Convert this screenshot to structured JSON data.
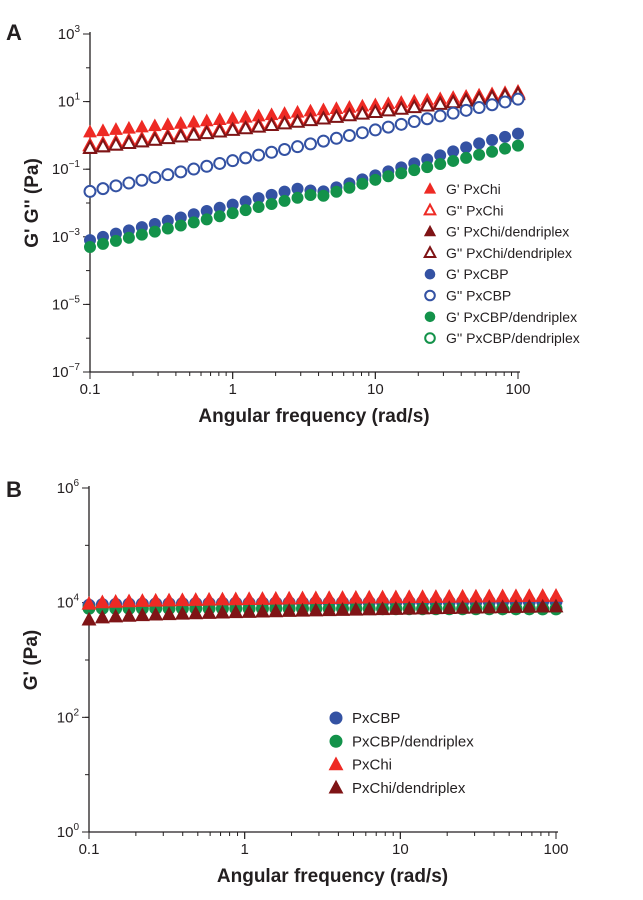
{
  "colors": {
    "red": "#ee2a24",
    "darkred": "#7f1416",
    "blue": "#3452a3",
    "green": "#13924a",
    "axis": "#231f20"
  },
  "chart_data": [
    {
      "panel": "A",
      "type": "scatter",
      "xlabel": "Angular frequency (rad/s)",
      "ylabel": "G' G'' (Pa)",
      "xscale": "log",
      "yscale": "log",
      "xlim": [
        0.1,
        100
      ],
      "ylim": [
        1e-07,
        1000
      ],
      "x_ticks": [
        "0.1",
        "1",
        "10",
        "100"
      ],
      "y_ticks": [
        {
          "value": 1e-07,
          "base": "10",
          "exp": "−7"
        },
        {
          "value": 1e-05,
          "base": "10",
          "exp": "−5"
        },
        {
          "value": 0.001,
          "base": "10",
          "exp": "−3"
        },
        {
          "value": 0.1,
          "base": "10",
          "exp": "−1"
        },
        {
          "value": 10,
          "base": "10",
          "exp": "1"
        },
        {
          "value": 1000,
          "base": "10",
          "exp": "3"
        }
      ],
      "legend_position": "lower-right",
      "series": [
        {
          "name": "G' PxChi",
          "marker": "triangle",
          "filled": true,
          "color": "#ee2a24",
          "fn": "power",
          "y0": 1.25,
          "slope": 0.4
        },
        {
          "name": "G'' PxChi",
          "marker": "triangle",
          "filled": false,
          "color": "#ee2a24",
          "fn": "power",
          "y0": 0.5,
          "slope": 0.52
        },
        {
          "name": "G' PxChi/dendriplex",
          "marker": "triangle",
          "filled": true,
          "color": "#7f1416",
          "fn": "power",
          "y0": 0.4,
          "slope": 0.55
        },
        {
          "name": "G'' PxChi/dendriplex",
          "marker": "triangle",
          "filled": false,
          "color": "#7f1416",
          "fn": "power",
          "y0": 0.42,
          "slope": 0.53
        },
        {
          "name": "G' PxCBP",
          "marker": "circle",
          "filled": true,
          "color": "#3452a3",
          "fn": "hump",
          "y0": 0.0008,
          "slope": 1.05,
          "offset": 0
        },
        {
          "name": "G'' PxCBP",
          "marker": "circle",
          "filled": false,
          "color": "#3452a3",
          "fn": "power",
          "y0": 0.022,
          "slope": 0.91
        },
        {
          "name": "G' PxCBP/dendriplex",
          "marker": "circle",
          "filled": true,
          "color": "#13924a",
          "fn": "hump",
          "y0": 0.0005,
          "slope": 1.1,
          "offset": -0.1
        },
        {
          "name": "G'' PxCBP/dendriplex",
          "marker": "circle",
          "filled": false,
          "color": "#13924a",
          "fn": "none"
        }
      ]
    },
    {
      "panel": "B",
      "type": "scatter",
      "xlabel": "Angular frequency (rad/s)",
      "ylabel": "G' (Pa)",
      "xscale": "log",
      "yscale": "log",
      "xlim": [
        0.1,
        100
      ],
      "ylim": [
        1,
        1000000
      ],
      "x_ticks": [
        "0.1",
        "1",
        "10",
        "100"
      ],
      "y_ticks": [
        {
          "value": 1,
          "base": "10",
          "exp": "0"
        },
        {
          "value": 100,
          "base": "10",
          "exp": "2"
        },
        {
          "value": 10000,
          "base": "10",
          "exp": "4"
        },
        {
          "value": 1000000,
          "base": "10",
          "exp": "6"
        }
      ],
      "legend_position": "lower-right",
      "series": [
        {
          "name": "PxCBP",
          "marker": "circle",
          "filled": true,
          "color": "#3452a3",
          "fn": "plateau",
          "y0": 9000,
          "y1": 10500
        },
        {
          "name": "PxCBP/dendriplex",
          "marker": "circle",
          "filled": true,
          "color": "#13924a",
          "fn": "plateau",
          "y0": 8000,
          "y1": 7800
        },
        {
          "name": "PxChi",
          "marker": "triangle",
          "filled": true,
          "color": "#ee2a24",
          "fn": "plateau",
          "y0": 9500,
          "y1": 13000
        },
        {
          "name": "PxChi/dendriplex",
          "marker": "triangle",
          "filled": true,
          "color": "#7f1416",
          "fn": "plateau",
          "y0": 5000,
          "y1": 8500
        }
      ]
    }
  ],
  "panels": {
    "a": {
      "letter": "A"
    },
    "b": {
      "letter": "B"
    }
  }
}
